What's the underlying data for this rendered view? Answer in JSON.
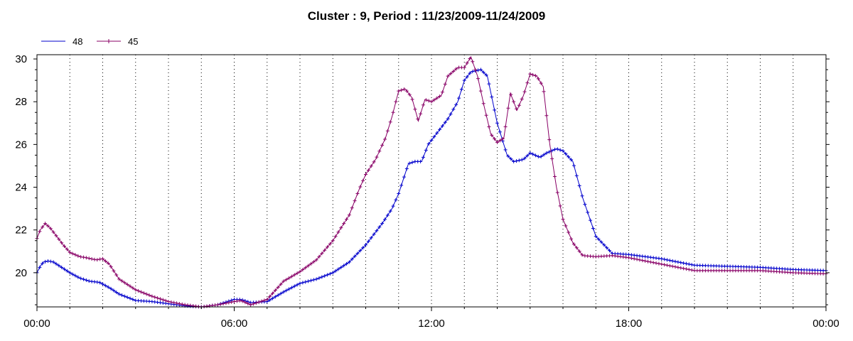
{
  "chart_data": {
    "type": "line",
    "title": "Cluster : 9, Period : 11/23/2009-11/24/2009",
    "xlabel": "",
    "ylabel": "",
    "x_tick_labels": [
      "00:00",
      "06:00",
      "12:00",
      "18:00",
      "00:00"
    ],
    "x_tick_hours": [
      0,
      6,
      12,
      18,
      24
    ],
    "xlim_hours": [
      0,
      24
    ],
    "ylim": [
      18.4,
      30.2
    ],
    "y_ticks": [
      20,
      22,
      24,
      26,
      28,
      30
    ],
    "grid": "dotted",
    "legend_position": "top-left",
    "series": [
      {
        "name": "48",
        "color": "#0000cc",
        "x_hours": [
          0,
          0.1,
          0.2,
          0.35,
          0.5,
          0.7,
          1.0,
          1.3,
          1.6,
          1.9,
          2.2,
          2.5,
          3.0,
          3.5,
          4.0,
          4.5,
          5.0,
          5.5,
          6.0,
          6.2,
          6.5,
          7.0,
          7.5,
          8.0,
          8.5,
          9.0,
          9.5,
          10.0,
          10.5,
          10.8,
          11.0,
          11.3,
          11.5,
          11.7,
          11.9,
          12.2,
          12.5,
          12.8,
          13.0,
          13.2,
          13.5,
          13.7,
          14.0,
          14.3,
          14.5,
          14.8,
          15.0,
          15.3,
          15.5,
          15.8,
          16.0,
          16.3,
          16.6,
          17.0,
          17.5,
          18.0,
          19.0,
          20.0,
          21.0,
          22.0,
          23.0,
          24.0
        ],
        "values": [
          20.0,
          20.3,
          20.5,
          20.55,
          20.5,
          20.3,
          20.0,
          19.75,
          19.6,
          19.55,
          19.3,
          19.0,
          18.7,
          18.65,
          18.55,
          18.45,
          18.4,
          18.5,
          18.75,
          18.75,
          18.6,
          18.65,
          19.1,
          19.5,
          19.7,
          20.0,
          20.5,
          21.3,
          22.3,
          23.0,
          23.7,
          25.1,
          25.2,
          25.2,
          26.0,
          26.6,
          27.2,
          28.0,
          29.0,
          29.4,
          29.5,
          29.2,
          27.0,
          25.5,
          25.2,
          25.3,
          25.6,
          25.4,
          25.6,
          25.8,
          25.7,
          25.2,
          23.5,
          21.7,
          20.9,
          20.85,
          20.65,
          20.35,
          20.3,
          20.25,
          20.15,
          20.1
        ]
      },
      {
        "name": "45",
        "color": "#880066",
        "x_hours": [
          0,
          0.1,
          0.25,
          0.4,
          0.6,
          0.8,
          1.0,
          1.3,
          1.5,
          1.8,
          2.0,
          2.2,
          2.5,
          3.0,
          3.5,
          4.0,
          4.5,
          5.0,
          5.5,
          6.0,
          6.2,
          6.5,
          7.0,
          7.5,
          8.0,
          8.5,
          9.0,
          9.5,
          9.8,
          10.0,
          10.3,
          10.6,
          10.8,
          11.0,
          11.2,
          11.4,
          11.6,
          11.8,
          12.0,
          12.3,
          12.5,
          12.8,
          13.0,
          13.2,
          13.4,
          13.6,
          13.8,
          14.0,
          14.2,
          14.4,
          14.6,
          14.8,
          15.0,
          15.2,
          15.4,
          15.6,
          15.8,
          16.0,
          16.3,
          16.6,
          17.0,
          17.5,
          18.0,
          18.5,
          19.0,
          20.0,
          21.0,
          22.0,
          23.0,
          24.0
        ],
        "values": [
          21.6,
          22.0,
          22.3,
          22.1,
          21.7,
          21.3,
          20.95,
          20.75,
          20.7,
          20.6,
          20.65,
          20.4,
          19.7,
          19.2,
          18.9,
          18.65,
          18.5,
          18.4,
          18.5,
          18.65,
          18.7,
          18.5,
          18.75,
          19.6,
          20.05,
          20.6,
          21.5,
          22.7,
          23.9,
          24.6,
          25.3,
          26.3,
          27.3,
          28.5,
          28.6,
          28.2,
          27.1,
          28.1,
          28.0,
          28.3,
          29.2,
          29.6,
          29.6,
          30.1,
          29.2,
          27.8,
          26.5,
          26.1,
          26.3,
          28.4,
          27.6,
          28.3,
          29.3,
          29.2,
          28.7,
          26.0,
          24.0,
          22.5,
          21.4,
          20.8,
          20.75,
          20.8,
          20.7,
          20.55,
          20.4,
          20.1,
          20.1,
          20.1,
          20.0,
          19.95
        ]
      }
    ]
  }
}
